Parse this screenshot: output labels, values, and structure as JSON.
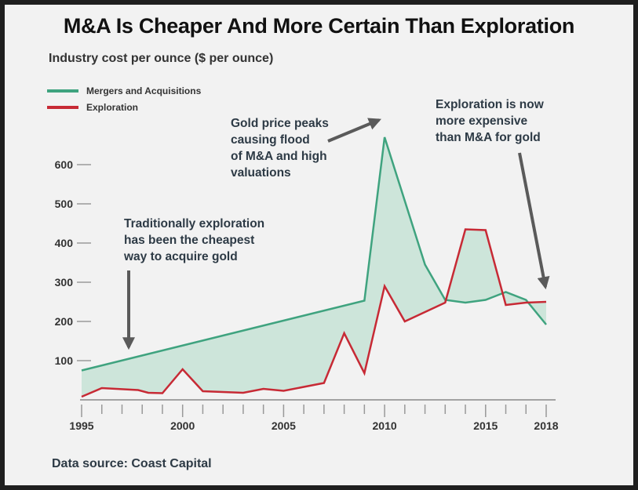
{
  "chart_data": {
    "type": "area",
    "title": "M&A Is Cheaper And More Certain Than Exploration",
    "subtitle": "Industry cost per ounce ($ per ounce)",
    "xlabel": "",
    "ylabel": "",
    "xlim": [
      1995,
      2018
    ],
    "ylim": [
      0,
      700
    ],
    "yticks": [
      100,
      200,
      300,
      400,
      500,
      600
    ],
    "xticks": [
      1995,
      2000,
      2005,
      2010,
      2015,
      2018
    ],
    "grid": false,
    "legend_position": "top-left",
    "series": [
      {
        "name": "Mergers and Acquisitions",
        "color": "#3fa37f",
        "x": [
          1995,
          2009,
          2010,
          2012,
          2013,
          2014,
          2015,
          2016,
          2017,
          2018
        ],
        "y": [
          75,
          253,
          670,
          345,
          255,
          248,
          255,
          275,
          255,
          192
        ]
      },
      {
        "name": "Exploration",
        "color": "#c72a35",
        "x": [
          1995,
          1996,
          1997.8,
          1998.3,
          1999,
          2000,
          2001,
          2003,
          2004,
          2005,
          2007,
          2008,
          2009,
          2010,
          2011,
          2013,
          2014,
          2015,
          2016,
          2017,
          2018
        ],
        "y": [
          8,
          30,
          25,
          18,
          17,
          78,
          22,
          18,
          28,
          23,
          43,
          170,
          68,
          290,
          200,
          248,
          435,
          433,
          242,
          248,
          250
        ]
      }
    ],
    "fill_between_color": "#cde5da",
    "annotations": [
      {
        "text": "Gold price peaks\ncausing flood\nof M&A and high\nvaluations"
      },
      {
        "text": "Exploration is now\nmore expensive\nthan M&A for gold"
      },
      {
        "text": "Traditionally exploration\nhas been the cheapest\nway to acquire gold"
      }
    ],
    "source": "Data source: Coast Capital"
  }
}
